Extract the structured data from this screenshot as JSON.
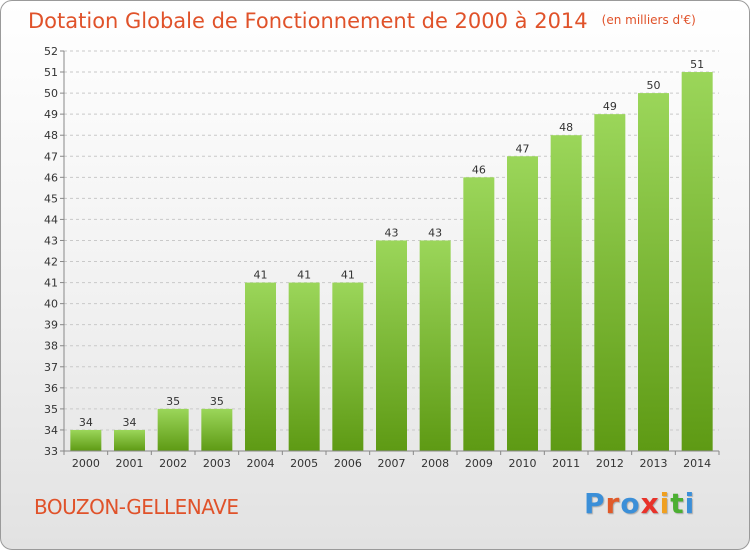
{
  "header": {
    "title": "Dotation Globale de Fonctionnement de 2000 à 2014",
    "unit": "(en milliers d'€)"
  },
  "footer": {
    "commune": "BOUZON-GELLENAVE",
    "logo": {
      "letters": [
        "P",
        "r",
        "o",
        "x",
        "i",
        "t",
        "i"
      ],
      "colors": [
        "#3b8fd8",
        "#e05a2a",
        "#3b8fd8",
        "#e8322a",
        "#f0a020",
        "#4caf32",
        "#3b8fd8"
      ]
    }
  },
  "colors": {
    "bar_top": "#9bd65a",
    "bar_bottom": "#5e9a14",
    "grid": "#c9c9c9",
    "axis": "#888888",
    "text": "#333333",
    "title": "#e0522a"
  },
  "chart_data": {
    "type": "bar",
    "title": "Dotation Globale de Fonctionnement de 2000 à 2014",
    "subtitle": "(en milliers d'€)",
    "xlabel": "",
    "ylabel": "",
    "ylim": [
      33,
      52
    ],
    "yticks": [
      33,
      34,
      35,
      36,
      37,
      38,
      39,
      40,
      41,
      42,
      43,
      44,
      45,
      46,
      47,
      48,
      49,
      50,
      51,
      52
    ],
    "grid": true,
    "categories": [
      "2000",
      "2001",
      "2002",
      "2003",
      "2004",
      "2005",
      "2006",
      "2007",
      "2008",
      "2009",
      "2010",
      "2011",
      "2012",
      "2013",
      "2014"
    ],
    "values": [
      34,
      34,
      35,
      35,
      41,
      41,
      41,
      43,
      43,
      46,
      47,
      48,
      49,
      50,
      51
    ]
  }
}
